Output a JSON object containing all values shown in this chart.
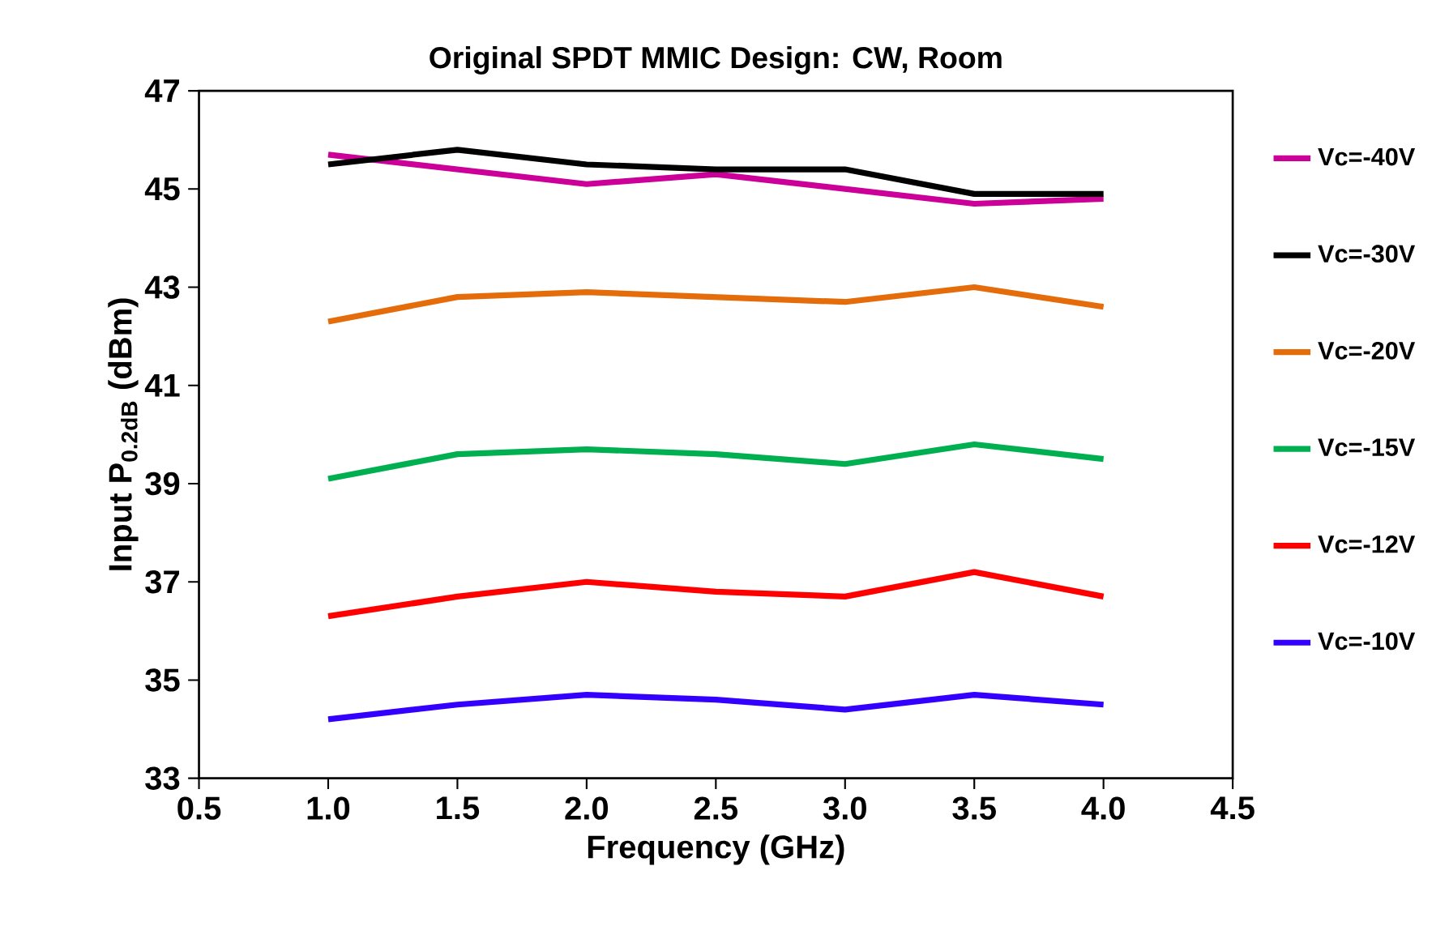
{
  "chart_data": {
    "type": "line",
    "title": "Original SPDT MMIC Design:  CW, Room",
    "xlabel": "Frequency (GHz)",
    "ylabel": "Input P$_{0.2dB}$  (dBm)",
    "x": [
      1.0,
      1.5,
      2.0,
      2.5,
      3.0,
      3.5,
      4.0
    ],
    "xlim": [
      0.5,
      4.5
    ],
    "xticks": [
      {
        "value": 0.5,
        "label": "0.5"
      },
      {
        "value": 1.0,
        "label": "1.0"
      },
      {
        "value": 1.5,
        "label": "1.5"
      },
      {
        "value": 2.0,
        "label": "2.0"
      },
      {
        "value": 2.5,
        "label": "2.5"
      },
      {
        "value": 3.0,
        "label": "3.0"
      },
      {
        "value": 3.5,
        "label": "3.5"
      },
      {
        "value": 4.0,
        "label": "4.0"
      },
      {
        "value": 4.5,
        "label": "4.5"
      }
    ],
    "ylim": [
      33,
      47
    ],
    "yticks": [
      33,
      35,
      37,
      39,
      41,
      43,
      45,
      47
    ],
    "legend": "right",
    "grid": false,
    "marker": "none",
    "line_style": "solid",
    "series": [
      {
        "name": "Vc=-40V",
        "color": "#cc0099",
        "values": [
          45.7,
          45.4,
          45.1,
          45.3,
          45.0,
          44.7,
          44.8
        ]
      },
      {
        "name": "Vc=-30V",
        "color": "#000000",
        "values": [
          45.5,
          45.8,
          45.5,
          45.4,
          45.4,
          44.9,
          44.9
        ]
      },
      {
        "name": "Vc=-20V",
        "color": "#e46c0a",
        "values": [
          42.3,
          42.8,
          42.9,
          42.8,
          42.7,
          43.0,
          42.6
        ]
      },
      {
        "name": "Vc=-15V",
        "color": "#00b050",
        "values": [
          39.1,
          39.6,
          39.7,
          39.6,
          39.4,
          39.8,
          39.5
        ]
      },
      {
        "name": "Vc=-12V",
        "color": "#ff0000",
        "values": [
          36.3,
          36.7,
          37.0,
          36.8,
          36.7,
          37.2,
          36.7
        ]
      },
      {
        "name": "Vc=-10V",
        "color": "#3300ff",
        "values": [
          34.2,
          34.5,
          34.7,
          34.6,
          34.4,
          34.7,
          34.5
        ]
      }
    ]
  }
}
